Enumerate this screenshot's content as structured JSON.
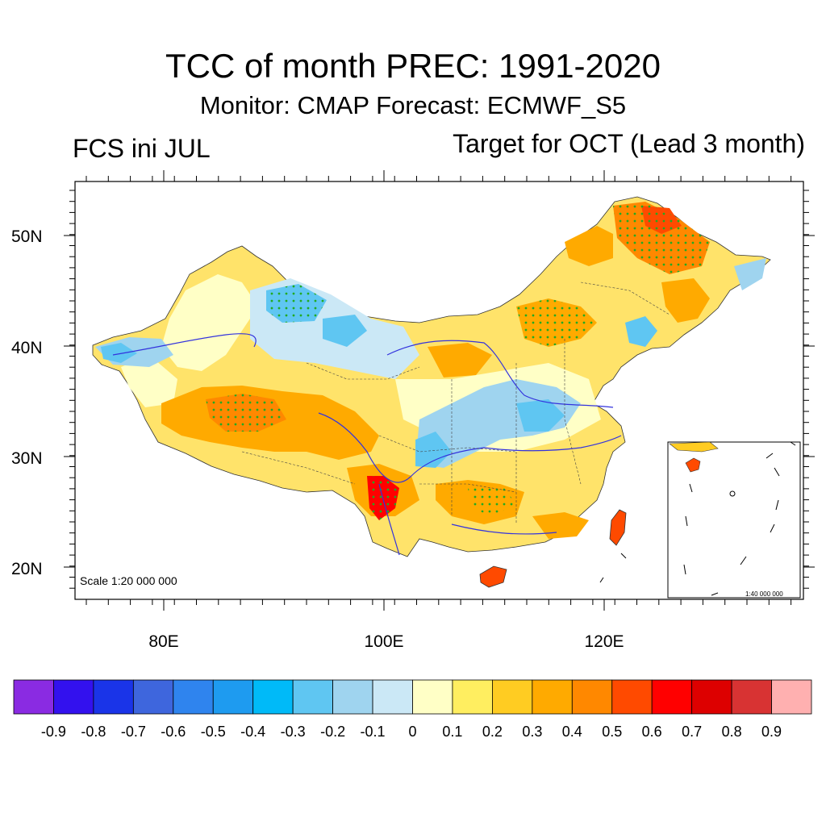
{
  "header": {
    "title": "TCC of month PREC: 1991-2020",
    "subtitle": "Monitor: CMAP   Forecast: ECMWF_S5",
    "left_label": "FCS ini JUL",
    "right_label": "Target for OCT (Lead 3 month)"
  },
  "map": {
    "scale_text": "Scale 1:20 000 000",
    "inset_scale_text": "1:40 000 000",
    "lat_ticks": [
      "50N",
      "40N",
      "30N",
      "20N"
    ],
    "lon_ticks": [
      "80E",
      "100E",
      "120E"
    ],
    "stipple_color": "#22aa22",
    "river_color": "#3333dd"
  },
  "colorbar": {
    "labels": [
      "-0.9",
      "-0.8",
      "-0.7",
      "-0.6",
      "-0.5",
      "-0.4",
      "-0.3",
      "-0.2",
      "-0.1",
      "0",
      "0.1",
      "0.2",
      "0.3",
      "0.4",
      "0.5",
      "0.6",
      "0.7",
      "0.8",
      "0.9"
    ],
    "colors": [
      "#8a2be2",
      "#3311ee",
      "#1a34e8",
      "#3e66dd",
      "#2f84ee",
      "#1e9bf0",
      "#00baf8",
      "#5fc6f2",
      "#9fd4ef",
      "#cbe8f6",
      "#ffffc6",
      "#ffee60",
      "#ffcc22",
      "#ffaa00",
      "#ff8800",
      "#ff4a00",
      "#ff0000",
      "#dd0000",
      "#d83333",
      "#ffb0b0"
    ]
  }
}
